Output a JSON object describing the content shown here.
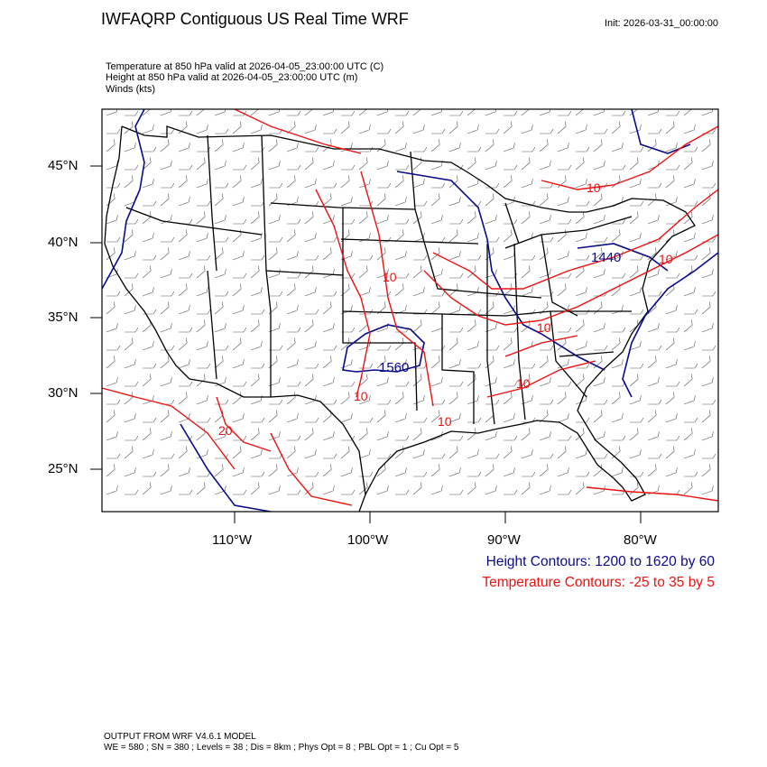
{
  "header": {
    "title": "IWFAQRP Contiguous US Real Time WRF",
    "init": "Init: 2026-03-31_00:00:00",
    "lines": [
      "Temperature at 850 hPa valid at 2026-04-05_23:00:00 UTC   (C)",
      "Height at 850 hPa valid at 2026-04-05_23:00:00 UTC   (m)",
      "Winds   (kts)"
    ]
  },
  "map": {
    "lat_labels": [
      "45°N",
      "40°N",
      "35°N",
      "30°N",
      "25°N"
    ],
    "lon_labels": [
      "110°W",
      "100°W",
      "90°W",
      "80°W"
    ],
    "height_contour_labels": [
      "1560",
      "1440"
    ],
    "temp_contour_labels": [
      "10",
      "10",
      "10",
      "10",
      "10",
      "20",
      "10",
      "10"
    ],
    "colors": {
      "height": "#0a0a8c",
      "temperature": "#ee1111",
      "boundaries": "#000000"
    }
  },
  "legend": {
    "height": "Height Contours: 1200 to 1620 by 60",
    "temperature": "Temperature Contours: -25 to 35 by 5"
  },
  "footer": {
    "line1": "OUTPUT FROM WRF V4.6.1 MODEL",
    "line2": "WE = 580 ; SN = 380 ; Levels = 38 ; Dis = 8km ; Phys Opt = 8 ; PBL Opt = 1 ; Cu Opt = 5"
  }
}
